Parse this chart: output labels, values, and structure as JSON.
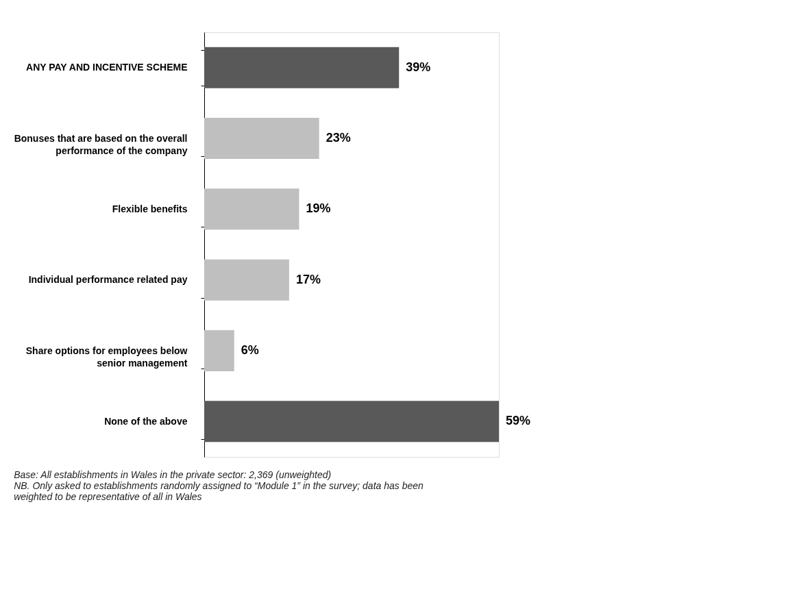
{
  "chart_data": {
    "type": "bar",
    "orientation": "horizontal",
    "grid": false,
    "categories": [
      "ANY PAY AND INCENTIVE SCHEME",
      "Bonuses that are based on the overall\nperformance of the company",
      "Flexible benefits",
      "Individual performance related pay",
      "Share options for employees below\nsenior management",
      "None of the above"
    ],
    "values": [
      39,
      23,
      19,
      17,
      6,
      59
    ],
    "value_labels": [
      "39%",
      "23%",
      "19%",
      "17%",
      "6%",
      "59%"
    ],
    "colors": [
      "#595959",
      "#bfbfbf",
      "#bfbfbf",
      "#bfbfbf",
      "#bfbfbf",
      "#595959"
    ],
    "annotations": [
      "Base: All establishments in Wales in the private sector:  2,369 (unweighted)",
      "NB. Only asked to establishments randomly assigned to “Module 1” in the survey; data has been",
      "weighted to be representative of all in Wales"
    ]
  }
}
